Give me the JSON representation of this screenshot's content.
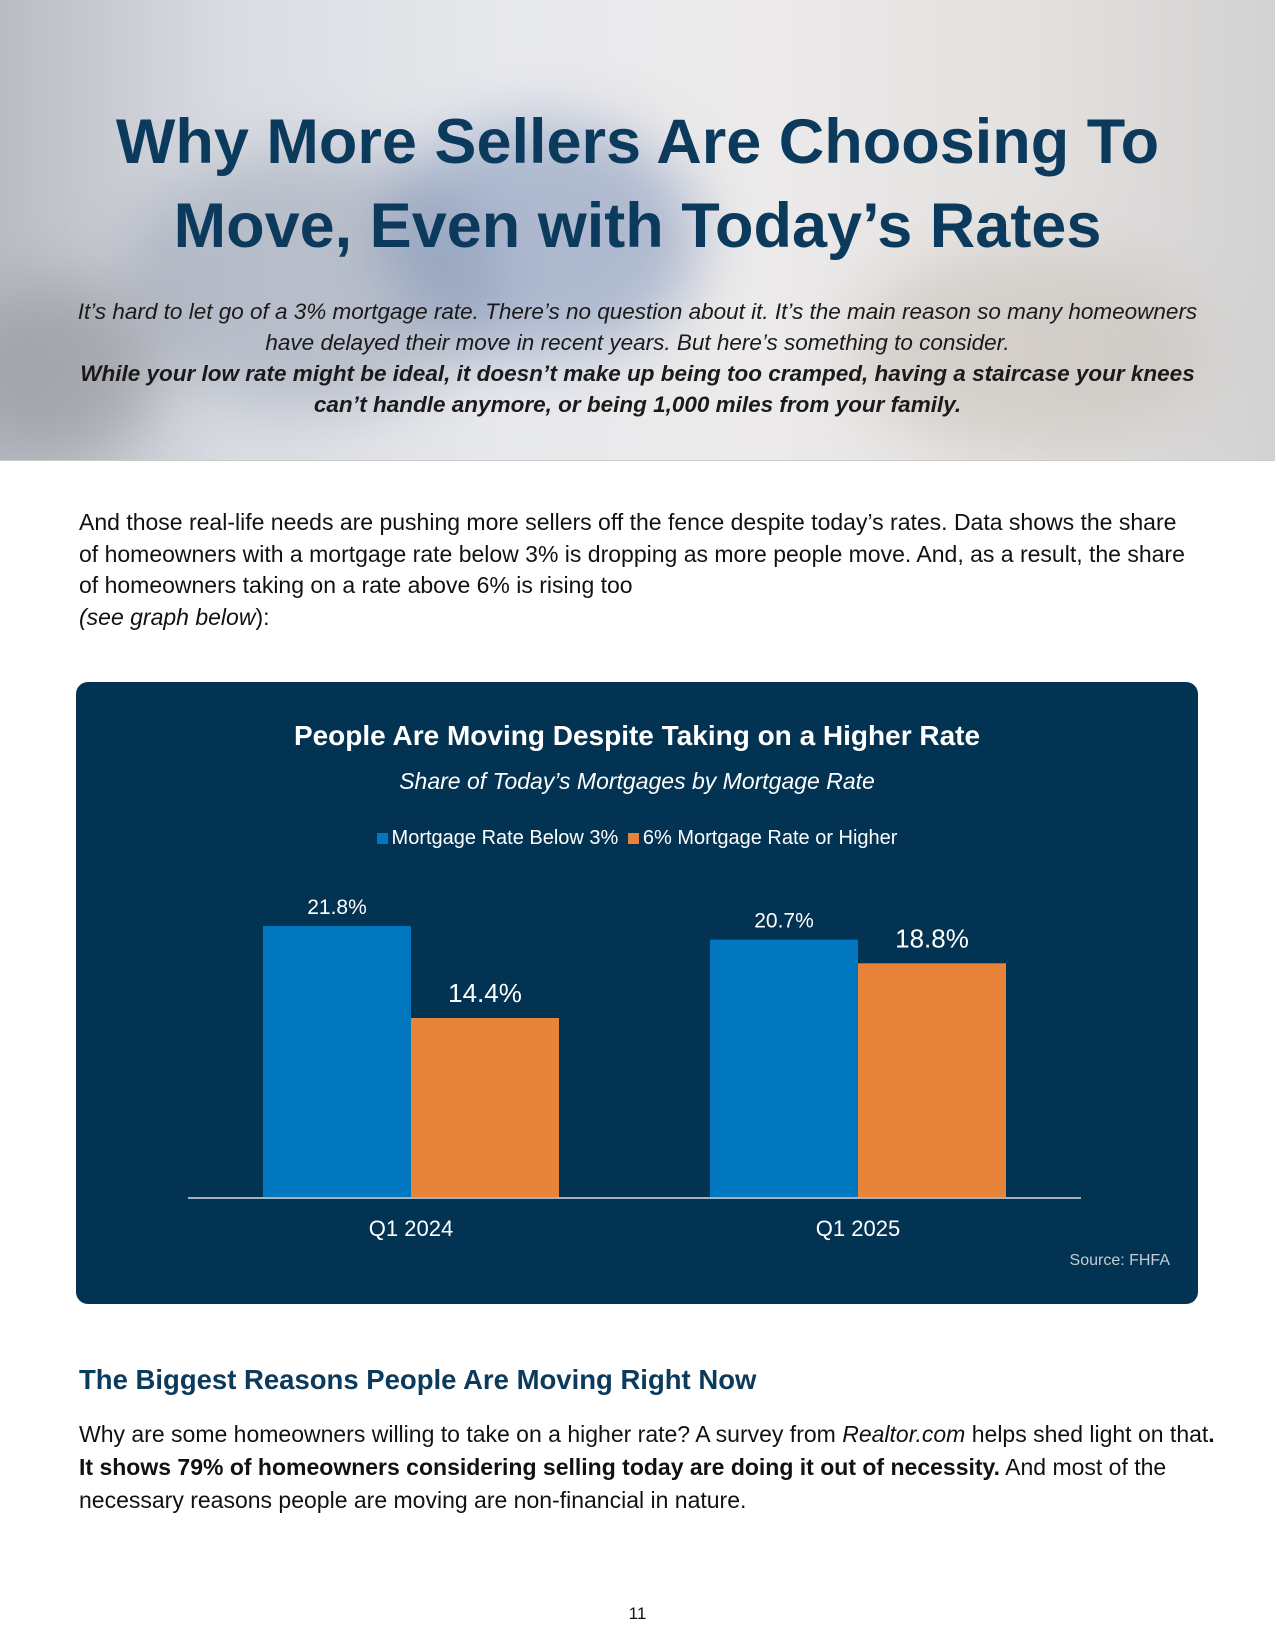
{
  "title": {
    "line1": "Why More Sellers Are Choosing To",
    "line2": "Move, Even with Today’s Rates"
  },
  "intro": {
    "normal": "It’s hard to let go of a 3% mortgage rate. There’s no question about it. It’s the main reason so many homeowners have delayed their move in recent years. But here’s something to consider.",
    "bold": "While your low rate might be ideal, it doesn’t make up being too cramped, having a staircase your knees can’t handle anymore, or being 1,000 miles from your family."
  },
  "body1": {
    "text": "And those real-life needs are pushing more sellers off the fence despite today’s rates. Data shows the share of homeowners with a mortgage rate below 3% is dropping as more people move. And, as a result, the share of homeowners taking on a rate above 6% is rising too ",
    "italic": "(see graph below",
    "end": "):"
  },
  "chart_data": {
    "type": "bar",
    "title": "People Are Moving Despite Taking on a Higher Rate",
    "subtitle": "Share of Today’s Mortgages by Mortgage Rate",
    "categories": [
      "Q1 2024",
      "Q1 2025"
    ],
    "series": [
      {
        "name": "Mortgage Rate Below 3%",
        "values": [
          21.8,
          20.7
        ],
        "labels": [
          "21.8%",
          "20.7%"
        ],
        "color": "#0077be"
      },
      {
        "name": "6% Mortgage Rate or Higher",
        "values": [
          14.4,
          18.8
        ],
        "labels": [
          "14.4%",
          "18.8%"
        ],
        "color": "#e8843a"
      }
    ],
    "legend": "top",
    "grid": false,
    "ylim": [
      0,
      25
    ],
    "source": "Source: FHFA"
  },
  "section": {
    "heading": "The Biggest Reasons People Are Moving Right Now",
    "p1": "Why are some homeowners willing to take on a higher rate? A survey from ",
    "p1_italic": "Realtor.com",
    "p1_b": " helps shed light on that",
    "p1_bold": ". It shows 79% of homeowners considering selling today are doing it out of necessity.",
    "p1_end": " And most of the necessary reasons people are moving are non-financial in nature."
  },
  "page_number": "11"
}
